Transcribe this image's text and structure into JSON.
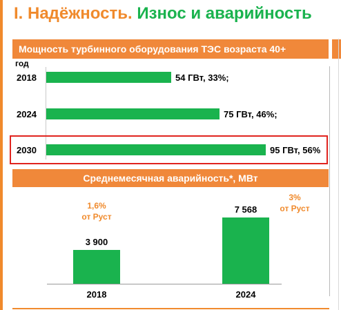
{
  "title": {
    "part1": "I. Надёжность.",
    "part2": "Износ и аварийность"
  },
  "colors": {
    "accent": "#f08a2c",
    "bar": "#1ab34e",
    "highlight": "#e0231e"
  },
  "chart_data": [
    {
      "type": "bar",
      "orientation": "horizontal",
      "title": "Мощность турбинного оборудования ТЭС возраста 40+",
      "ylabel": "год",
      "categories": [
        "2018",
        "2024",
        "2030"
      ],
      "values": [
        54,
        75,
        95
      ],
      "units": "ГВт",
      "percents": [
        33,
        46,
        56
      ],
      "data_labels": [
        "54 ГВт, 33%;",
        "75 ГВт, 46%;",
        "95 ГВт, 56%"
      ],
      "xlim": [
        0,
        100
      ],
      "highlighted_category": "2030"
    },
    {
      "type": "bar",
      "orientation": "vertical",
      "title": "Среднемесячная аварийность*, МВт",
      "categories": [
        "2018",
        "2024"
      ],
      "values": [
        3900,
        7568
      ],
      "data_labels": [
        "3 900",
        "7 568"
      ],
      "notes": [
        [
          "1,6%",
          "от Руст"
        ],
        [
          "3%",
          "от Руст"
        ]
      ],
      "ylim": [
        0,
        9000
      ]
    }
  ]
}
